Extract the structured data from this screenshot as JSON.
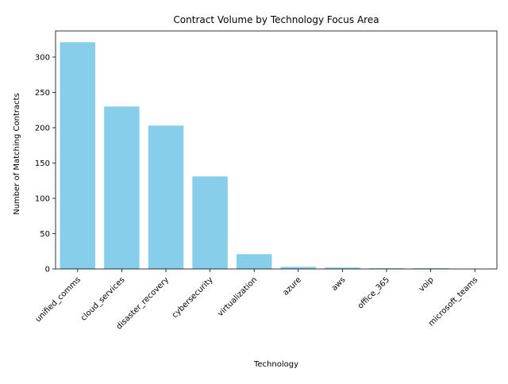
{
  "chart_data": {
    "type": "bar",
    "title": "Contract Volume by Technology Focus Area",
    "xlabel": "Technology",
    "ylabel": "Number of Matching Contracts",
    "categories": [
      "unified_comms",
      "cloud_services",
      "disaster_recovery",
      "cybersecurity",
      "virtualization",
      "azure",
      "aws",
      "office_365",
      "voip",
      "microsoft_teams"
    ],
    "values": [
      321,
      230,
      203,
      131,
      21,
      3,
      2,
      1,
      1,
      0
    ],
    "ylim": [
      0,
      337
    ],
    "yticks": [
      0,
      50,
      100,
      150,
      200,
      250,
      300
    ],
    "bar_color": "#87ceeb",
    "grid": false,
    "legend": "none"
  }
}
